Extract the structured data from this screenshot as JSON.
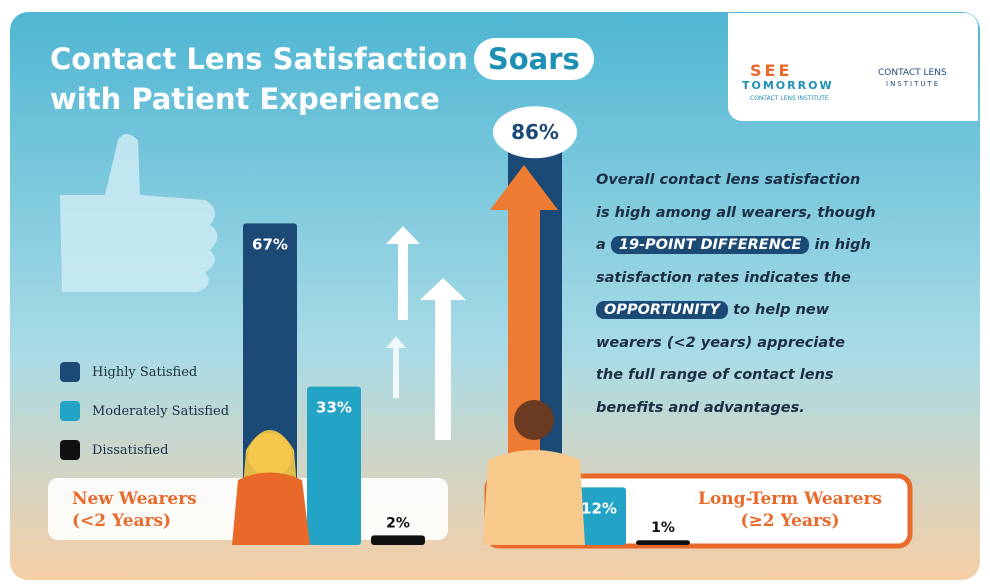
{
  "chart_data": {
    "type": "bar",
    "title": "Contact Lens Satisfaction",
    "title_highlight": "Soars",
    "title_line2": "with Patient Experience",
    "logos": [
      "SEE",
      "TOMORROW",
      "CONTACT LENS INSTITUTE",
      "CONTACT LENS",
      "INSTITUTE"
    ],
    "categories": [
      "New Wearers (<2 Years)",
      "Long-Term Wearers (≥2 Years)"
    ],
    "series": [
      {
        "name": "Highly Satisfied",
        "color": "#1b4a76",
        "values": [
          67,
          86
        ],
        "value_labels": [
          "67%",
          "86%"
        ]
      },
      {
        "name": "Moderately Satisfied",
        "color": "#23a3c6",
        "values": [
          33,
          12
        ],
        "value_labels": [
          "33%",
          "12%"
        ]
      },
      {
        "name": "Dissatisfied",
        "color": "#111111",
        "values": [
          2,
          1
        ],
        "value_labels": [
          "2%",
          "1%"
        ]
      }
    ],
    "annotation": [
      {
        "text": "Overall contact lens satisfaction is high among all wearers, though a",
        "highlight": false
      },
      {
        "text": "19-POINT DIFFERENCE",
        "highlight": true
      },
      {
        "text": "in high satisfaction rates indicates the",
        "highlight": false
      },
      {
        "text": "OPPORTUNITY",
        "highlight": true
      },
      {
        "text": "to help new wearers (<2 years) appreciate the full range of contact lens benefits and advantages.",
        "highlight": false
      }
    ]
  }
}
